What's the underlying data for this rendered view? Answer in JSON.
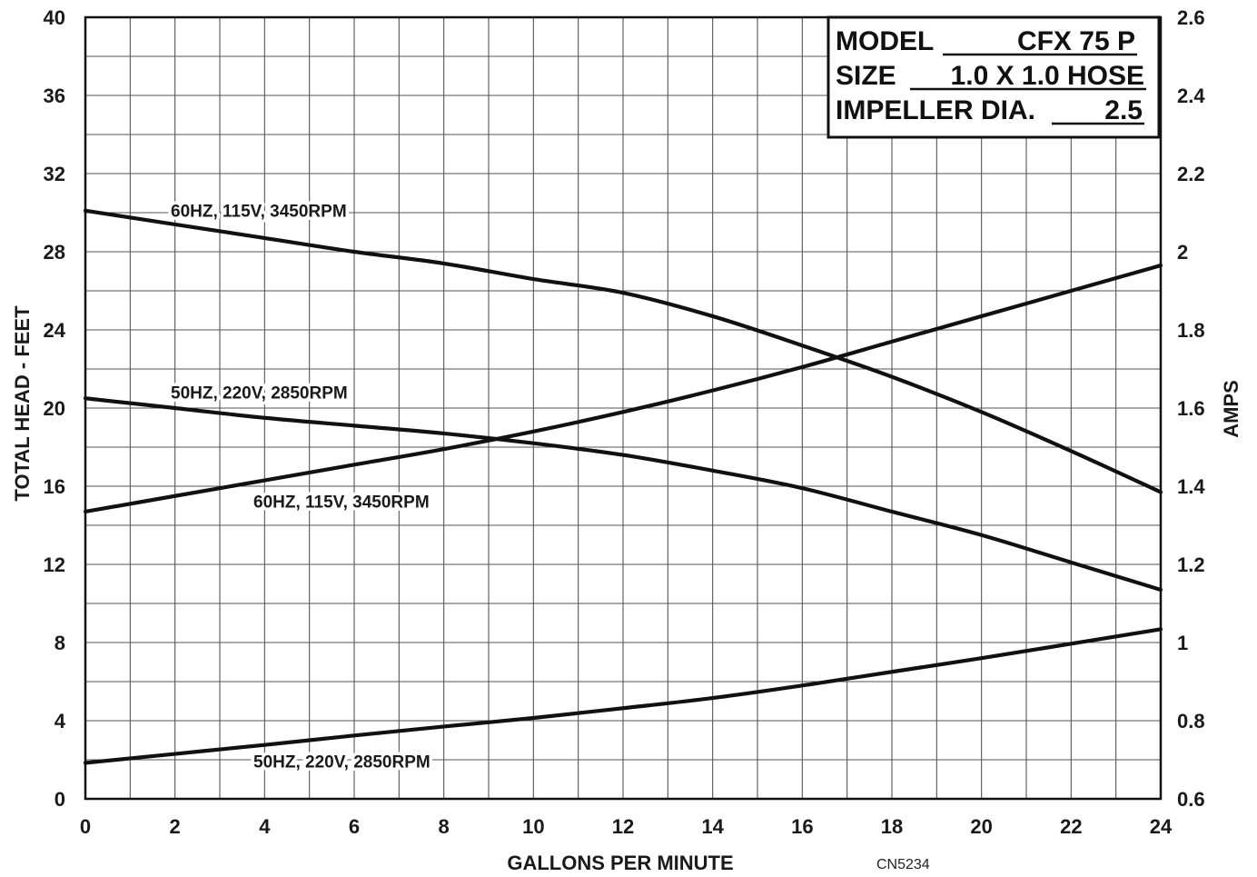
{
  "info_box": {
    "model_label": "MODEL",
    "model_value": "CFX 75 P",
    "size_label": "SIZE",
    "size_value": "1.0 X 1.0 HOSE",
    "impeller_label": "IMPELLER DIA.",
    "impeller_value": "2.5"
  },
  "figure_code": "CN5234",
  "chart_data": {
    "type": "line",
    "title": "",
    "xlabel": "GALLONS PER MINUTE",
    "ylabel_left": "TOTAL HEAD - FEET",
    "ylabel_right": "AMPS",
    "xlim": [
      0,
      24
    ],
    "ylim_left": [
      0,
      40
    ],
    "ylim_right": [
      0.6,
      2.6
    ],
    "x_ticks": [
      0,
      2,
      4,
      6,
      8,
      10,
      12,
      14,
      16,
      18,
      20,
      22,
      24
    ],
    "y_ticks_left": [
      0,
      4,
      8,
      12,
      16,
      20,
      24,
      28,
      32,
      36,
      40
    ],
    "y_ticks_right": [
      "0.6",
      "0.8",
      "1",
      "1.2",
      "1.4",
      "1.6",
      "1.8",
      "2",
      "2.2",
      "2.4",
      "2.6"
    ],
    "grid": true,
    "series": [
      {
        "name": "60HZ, 115V, 3450RPM",
        "kind": "head",
        "axis": "left",
        "x": [
          0,
          2,
          4,
          6,
          8,
          10,
          12,
          14,
          16,
          18,
          20,
          22,
          24
        ],
        "y": [
          30.1,
          29.4,
          28.7,
          28.0,
          27.4,
          26.6,
          25.9,
          24.7,
          23.2,
          21.6,
          19.8,
          17.8,
          15.7
        ]
      },
      {
        "name": "50HZ, 220V, 2850RPM",
        "kind": "head",
        "axis": "left",
        "x": [
          0,
          2,
          4,
          6,
          8,
          10,
          12,
          14,
          16,
          18,
          20,
          22,
          24
        ],
        "y": [
          20.5,
          20.0,
          19.5,
          19.1,
          18.7,
          18.2,
          17.6,
          16.8,
          15.9,
          14.7,
          13.5,
          12.1,
          10.7
        ]
      },
      {
        "name": "60HZ, 115V, 3450RPM",
        "kind": "amps",
        "axis": "right",
        "x": [
          0,
          2,
          4,
          6,
          8,
          10,
          12,
          14,
          16,
          18,
          20,
          22,
          24
        ],
        "y": [
          1.335,
          1.375,
          1.415,
          1.455,
          1.495,
          1.54,
          1.59,
          1.645,
          1.705,
          1.77,
          1.835,
          1.9,
          1.965
        ]
      },
      {
        "name": "50HZ, 220V, 2850RPM",
        "kind": "amps",
        "axis": "right",
        "x": [
          0,
          2,
          4,
          6,
          8,
          10,
          12,
          14,
          16,
          18,
          20,
          22,
          24
        ],
        "y": [
          0.692,
          0.715,
          0.738,
          0.762,
          0.785,
          0.807,
          0.832,
          0.858,
          0.89,
          0.925,
          0.96,
          0.997,
          1.034
        ]
      }
    ]
  }
}
